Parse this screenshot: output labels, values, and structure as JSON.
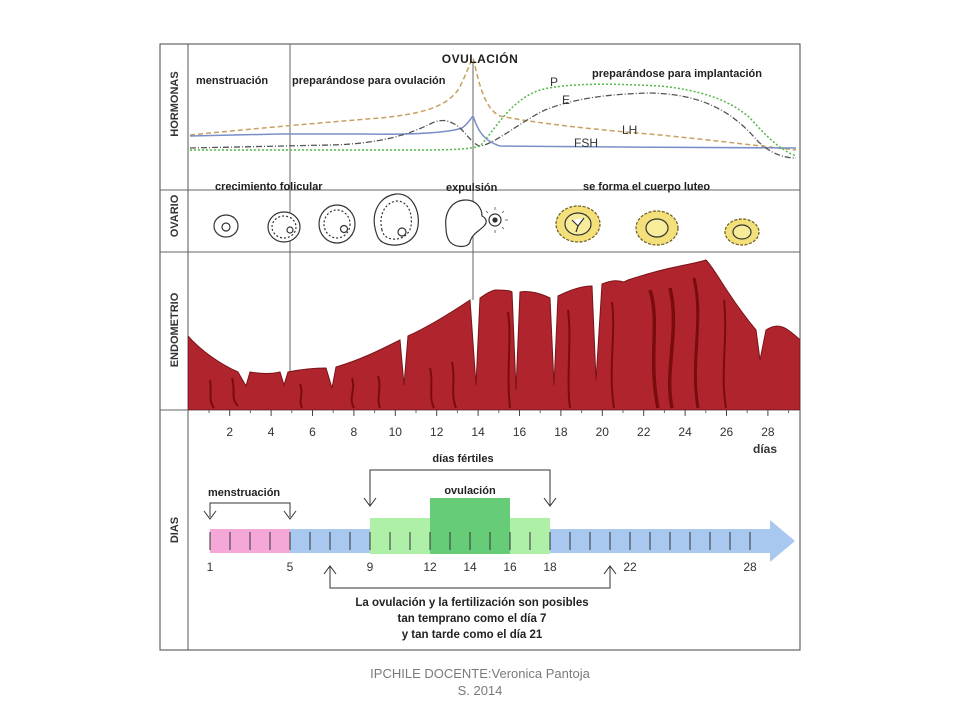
{
  "rows": {
    "hormonas": "HORMONAS",
    "ovario": "OVARIO",
    "endometrio": "ENDOMETRIO",
    "dias": "DIAS"
  },
  "hormonas": {
    "title": "OVULACIÓN",
    "menstruacion": "menstruación",
    "preparando_ovulacion": "preparándose para ovulación",
    "preparando_implantacion": "preparándose para implantación",
    "labels": {
      "P": "P",
      "E": "E",
      "LH": "LH",
      "FSH": "FSH"
    },
    "colors": {
      "P": "#55b84a",
      "E": "#555555",
      "LH": "#c8a060",
      "FSH": "#7a8fc8"
    }
  },
  "ovario": {
    "crecimiento": "crecimiento folicular",
    "expulsion": "expulsión",
    "cuerpo_luteo": "se forma el cuerpo luteo"
  },
  "endometrio": {
    "color": "#b0242e",
    "day_ticks": [
      "2",
      "4",
      "6",
      "8",
      "10",
      "12",
      "14",
      "16",
      "18",
      "20",
      "22",
      "24",
      "26",
      "28"
    ],
    "unit": "días"
  },
  "dias": {
    "fertiles": "días fértiles",
    "menstruacion": "menstruación",
    "ovulacion": "ovulación",
    "numbers": [
      "1",
      "5",
      "9",
      "12",
      "14",
      "16",
      "18",
      "22",
      "28"
    ],
    "note_lines": [
      "La ovulación y la fertilización son posibles",
      "tan temprano como el día 7",
      "y tan tarde como el día 21"
    ],
    "colors": {
      "menstruacion": "#f5a8d8",
      "normal": "#a8c8f0",
      "fertil": "#aef0a8",
      "ovulacion": "#66cc77"
    }
  },
  "footer": {
    "line1": "IPCHILE  DOCENTE:Veronica Pantoja",
    "line2": "S. 2014"
  }
}
